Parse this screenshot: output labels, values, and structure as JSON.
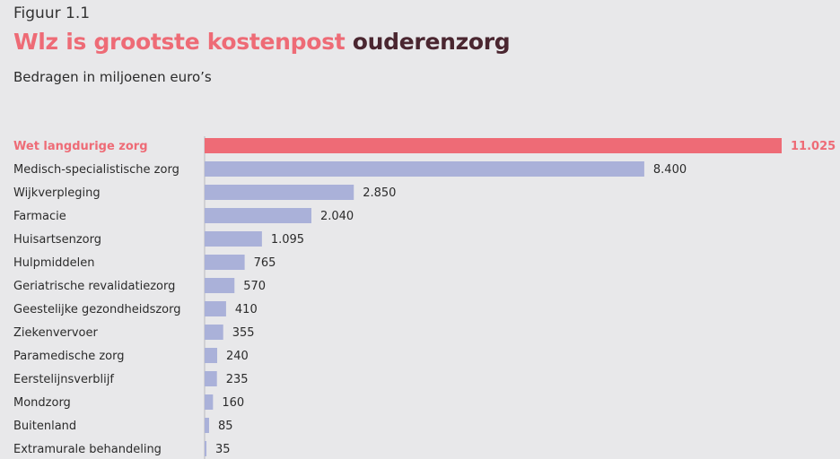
{
  "figure_label": "Figuur 1.1",
  "title_part1": "Wlz is grootste kostenpost",
  "title_part2": "ouderenzorg",
  "subtitle": "Bedragen in miljoenen euro’s",
  "colors": {
    "highlight": "#ee6b76",
    "bar": "#aab1d9",
    "title_dark": "#4a2630",
    "background": "#e8e8ea"
  },
  "chart_data": {
    "type": "bar",
    "orientation": "horizontal",
    "title": "Wlz is grootste kostenpost ouderenzorg",
    "subtitle": "Bedragen in miljoenen euro’s",
    "categories": [
      "Wet langdurige zorg",
      "Medisch-specialistische zorg",
      "Wijkverpleging",
      "Farmacie",
      "Huisartsenzorg",
      "Hulpmiddelen",
      "Geriatrische revalidatiezorg",
      "Geestelijke gezondheidszorg",
      "Ziekenvervoer",
      "Paramedische zorg",
      "Eerstelijnsverblijf",
      "Mondzorg",
      "Buitenland",
      "Extramurale behandeling"
    ],
    "values": [
      11025,
      8400,
      2850,
      2040,
      1095,
      765,
      570,
      410,
      355,
      240,
      235,
      160,
      85,
      35
    ],
    "value_labels": [
      "11.025",
      "8.400",
      "2.850",
      "2.040",
      "1.095",
      "765",
      "570",
      "410",
      "355",
      "240",
      "235",
      "160",
      "85",
      "35"
    ],
    "highlighted_index": 0,
    "xlim": [
      0,
      11025
    ],
    "grid": false,
    "legend": "none"
  }
}
